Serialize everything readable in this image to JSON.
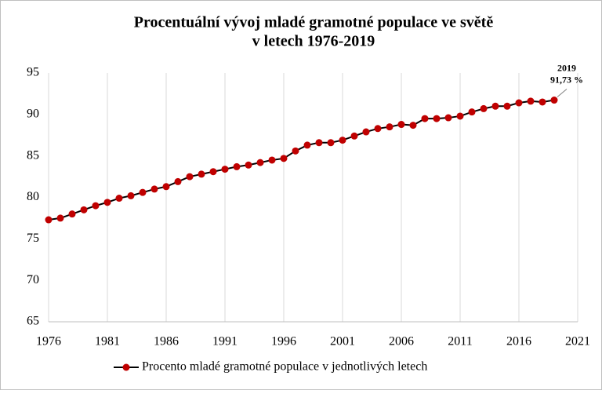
{
  "chart_data": {
    "type": "line",
    "title": [
      "Procentuální vývoj mladé gramotné populace ve světě",
      "v letech 1976-2019"
    ],
    "x": [
      1976,
      1977,
      1978,
      1979,
      1980,
      1981,
      1982,
      1983,
      1984,
      1985,
      1986,
      1987,
      1988,
      1989,
      1990,
      1991,
      1992,
      1993,
      1994,
      1995,
      1996,
      1997,
      1998,
      1999,
      2000,
      2001,
      2002,
      2003,
      2004,
      2005,
      2006,
      2007,
      2008,
      2009,
      2010,
      2011,
      2012,
      2013,
      2014,
      2015,
      2016,
      2017,
      2018,
      2019
    ],
    "series": [
      {
        "name": "Procento mladé gramotné populace v jednotlivých letech",
        "color": "#c00000",
        "line_color": "#000000",
        "values": [
          77.3,
          77.5,
          78.0,
          78.5,
          79.0,
          79.4,
          79.9,
          80.2,
          80.6,
          81.0,
          81.3,
          81.9,
          82.5,
          82.8,
          83.1,
          83.4,
          83.7,
          83.9,
          84.2,
          84.5,
          84.7,
          85.6,
          86.3,
          86.6,
          86.6,
          86.9,
          87.4,
          87.9,
          88.3,
          88.5,
          88.8,
          88.7,
          89.5,
          89.5,
          89.6,
          89.8,
          90.3,
          90.7,
          91.0,
          91.0,
          91.4,
          91.6,
          91.5,
          91.73
        ],
        "value_labels": [
          null,
          null,
          null,
          null,
          null,
          null,
          null,
          null,
          null,
          null,
          null,
          null,
          null,
          null,
          null,
          null,
          null,
          null,
          null,
          null,
          null,
          null,
          null,
          null,
          null,
          null,
          null,
          null,
          null,
          null,
          null,
          null,
          null,
          null,
          null,
          null,
          null,
          null,
          null,
          null,
          null,
          null,
          null,
          "91,73 %"
        ]
      }
    ],
    "xlim": [
      1976,
      2021
    ],
    "xticks": [
      1976,
      1981,
      1986,
      1991,
      1996,
      2001,
      2006,
      2011,
      2016,
      2021
    ],
    "ylim": [
      65,
      95
    ],
    "yticks": [
      65,
      70,
      75,
      80,
      85,
      90,
      95
    ],
    "grid": "x",
    "legend": "bottom"
  }
}
